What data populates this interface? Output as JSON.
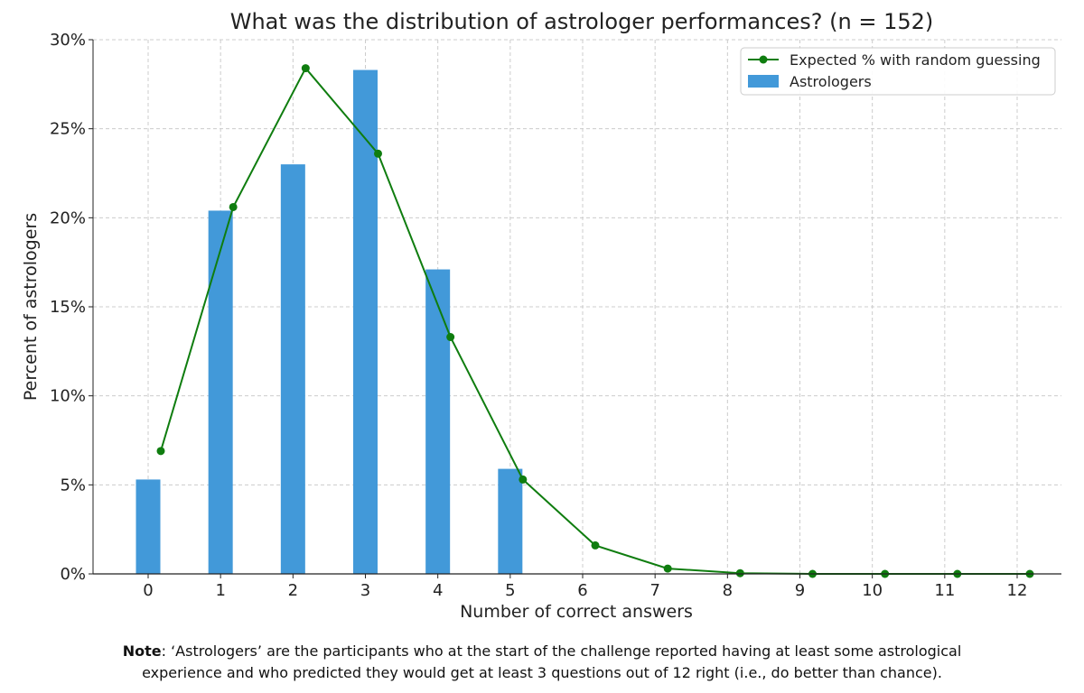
{
  "chart_data": {
    "type": "bar",
    "title": "What was the distribution of astrologer performances? (n = 152)",
    "xlabel": "Number of correct answers",
    "ylabel": "Percent of astrologers",
    "categories": [
      "0",
      "1",
      "2",
      "3",
      "4",
      "5",
      "6",
      "7",
      "8",
      "9",
      "10",
      "11",
      "12"
    ],
    "ylim": [
      0,
      30
    ],
    "yticks": [
      0,
      5,
      10,
      15,
      20,
      25,
      30
    ],
    "ytick_labels": [
      "0%",
      "5%",
      "10%",
      "15%",
      "20%",
      "25%",
      "30%"
    ],
    "grid": true,
    "legend_position": "top-right",
    "series": [
      {
        "name": "Astrologers",
        "type": "bar",
        "color": "#4299d9",
        "values": [
          5.3,
          20.4,
          23.0,
          28.3,
          17.1,
          5.9,
          0,
          0,
          0,
          0,
          0,
          0,
          0
        ]
      },
      {
        "name": "Expected % with random guessing",
        "type": "line",
        "color": "#0f7d0f",
        "values": [
          6.9,
          20.6,
          28.4,
          23.6,
          13.3,
          5.3,
          1.6,
          0.3,
          0.04,
          0.0,
          0.0,
          0.0,
          0.0
        ]
      }
    ]
  },
  "note": {
    "label": "Note",
    "line1": ": ‘Astrologers’ are the participants who at the start of the challenge reported having at least some astrological",
    "line2": "experience and who predicted they would get at least 3 questions out of 12 right (i.e., do better than chance)."
  }
}
